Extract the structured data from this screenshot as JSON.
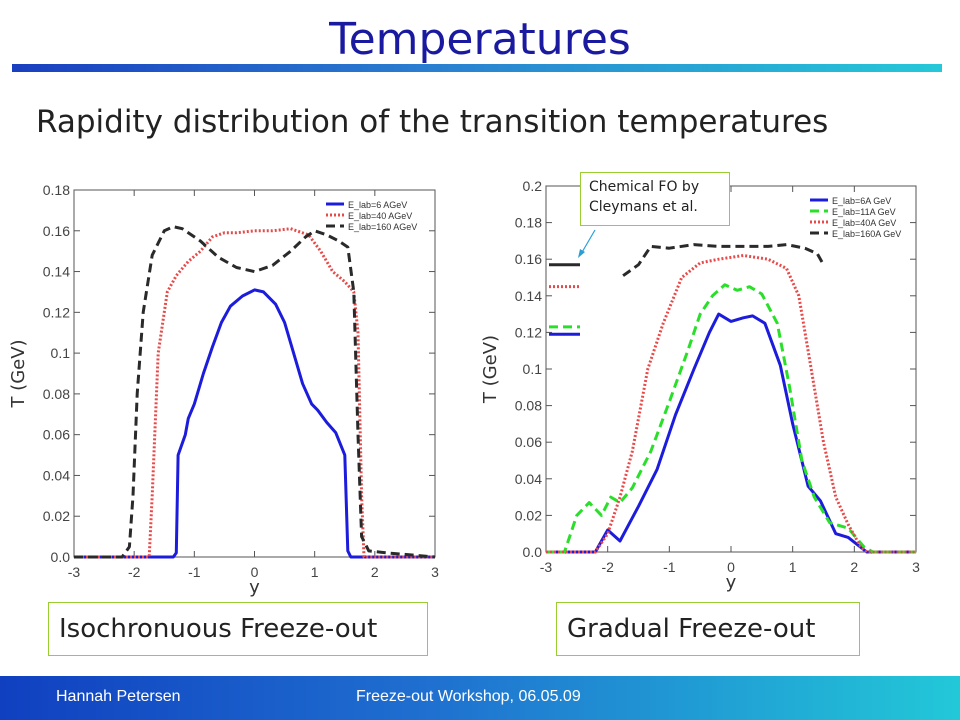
{
  "slide": {
    "title": "Temperatures",
    "subtitle": "Rapidity distribution of the transition temperatures",
    "caption_left": "Isochronuous Freeze-out",
    "caption_right": "Gradual Freeze-out",
    "callout": [
      "Chemical FO by",
      "Cleymans et al."
    ],
    "footer_author": "Hannah Petersen",
    "footer_event": "Freeze-out Workshop, 06.05.09"
  },
  "chart_data": [
    {
      "type": "line",
      "xlabel": "y",
      "ylabel": "T (GeV)",
      "xlim": [
        -3,
        3
      ],
      "ylim": [
        0,
        0.18
      ],
      "xticks": [
        "-3",
        "-2",
        "-1",
        "0",
        "1",
        "2",
        "3"
      ],
      "yticks": [
        "0.0",
        "0.02",
        "0.04",
        "0.06",
        "0.08",
        "0.1",
        "0.12",
        "0.14",
        "0.16",
        "0.18"
      ],
      "legend_position": "top-right",
      "series": [
        {
          "name": "E_lab=6 AGeV",
          "color": "#1c1cdc",
          "style": "solid",
          "points": [
            [
              -3,
              0
            ],
            [
              -1.35,
              0
            ],
            [
              -1.3,
              0.002
            ],
            [
              -1.27,
              0.05
            ],
            [
              -1.15,
              0.06
            ],
            [
              -1.1,
              0.068
            ],
            [
              -1.0,
              0.075
            ],
            [
              -0.85,
              0.09
            ],
            [
              -0.7,
              0.103
            ],
            [
              -0.55,
              0.115
            ],
            [
              -0.4,
              0.123
            ],
            [
              -0.2,
              0.128
            ],
            [
              0,
              0.131
            ],
            [
              0.15,
              0.13
            ],
            [
              0.35,
              0.124
            ],
            [
              0.5,
              0.115
            ],
            [
              0.65,
              0.1
            ],
            [
              0.8,
              0.085
            ],
            [
              0.95,
              0.075
            ],
            [
              1.05,
              0.072
            ],
            [
              1.2,
              0.066
            ],
            [
              1.35,
              0.061
            ],
            [
              1.5,
              0.05
            ],
            [
              1.55,
              0.003
            ],
            [
              1.6,
              0
            ],
            [
              3,
              0
            ]
          ]
        },
        {
          "name": "E_lab=40 AGeV",
          "color": "#e84a4a",
          "style": "dotted",
          "points": [
            [
              -3,
              0
            ],
            [
              -1.75,
              0
            ],
            [
              -1.7,
              0.03
            ],
            [
              -1.6,
              0.1
            ],
            [
              -1.45,
              0.13
            ],
            [
              -1.3,
              0.138
            ],
            [
              -1.1,
              0.145
            ],
            [
              -0.9,
              0.15
            ],
            [
              -0.7,
              0.157
            ],
            [
              -0.5,
              0.159
            ],
            [
              -0.3,
              0.159
            ],
            [
              0,
              0.16
            ],
            [
              0.3,
              0.16
            ],
            [
              0.6,
              0.161
            ],
            [
              0.9,
              0.158
            ],
            [
              1.1,
              0.15
            ],
            [
              1.3,
              0.14
            ],
            [
              1.5,
              0.135
            ],
            [
              1.65,
              0.13
            ],
            [
              1.72,
              0.11
            ],
            [
              1.78,
              0.03
            ],
            [
              1.82,
              0
            ],
            [
              3,
              0
            ]
          ]
        },
        {
          "name": "E_lab=160 AGeV",
          "color": "#2a2a2a",
          "style": "dashed",
          "points": [
            [
              -3,
              0
            ],
            [
              -2.2,
              0
            ],
            [
              -2.08,
              0.005
            ],
            [
              -2.02,
              0.03
            ],
            [
              -1.95,
              0.08
            ],
            [
              -1.85,
              0.12
            ],
            [
              -1.7,
              0.148
            ],
            [
              -1.5,
              0.16
            ],
            [
              -1.35,
              0.162
            ],
            [
              -1.2,
              0.161
            ],
            [
              -0.9,
              0.155
            ],
            [
              -0.6,
              0.147
            ],
            [
              -0.3,
              0.142
            ],
            [
              0,
              0.14
            ],
            [
              0.3,
              0.143
            ],
            [
              0.6,
              0.15
            ],
            [
              0.85,
              0.157
            ],
            [
              1.0,
              0.16
            ],
            [
              1.2,
              0.158
            ],
            [
              1.4,
              0.155
            ],
            [
              1.55,
              0.152
            ],
            [
              1.65,
              0.13
            ],
            [
              1.72,
              0.06
            ],
            [
              1.78,
              0.01
            ],
            [
              1.9,
              0.003
            ],
            [
              2.2,
              0.002
            ],
            [
              3,
              0
            ]
          ]
        }
      ]
    },
    {
      "type": "line",
      "xlabel": "y",
      "ylabel": "T (GeV)",
      "xlim": [
        -3,
        3
      ],
      "ylim": [
        0,
        0.2
      ],
      "xticks": [
        "-3",
        "-2",
        "-1",
        "0",
        "1",
        "2",
        "3"
      ],
      "yticks": [
        "0.0",
        "0.02",
        "0.04",
        "0.06",
        "0.08",
        "0.1",
        "0.12",
        "0.14",
        "0.16",
        "0.18",
        "0.2"
      ],
      "legend_position": "top-right",
      "series": [
        {
          "name": "E_lab=6A GeV",
          "color": "#1c1cdc",
          "style": "solid",
          "points": [
            [
              -3,
              0
            ],
            [
              -2.2,
              0
            ],
            [
              -2.0,
              0.012
            ],
            [
              -1.8,
              0.006
            ],
            [
              -1.5,
              0.025
            ],
            [
              -1.2,
              0.045
            ],
            [
              -0.9,
              0.075
            ],
            [
              -0.6,
              0.1
            ],
            [
              -0.35,
              0.12
            ],
            [
              -0.2,
              0.13
            ],
            [
              0,
              0.126
            ],
            [
              0.2,
              0.128
            ],
            [
              0.35,
              0.129
            ],
            [
              0.55,
              0.125
            ],
            [
              0.8,
              0.102
            ],
            [
              1.0,
              0.07
            ],
            [
              1.25,
              0.036
            ],
            [
              1.45,
              0.028
            ],
            [
              1.7,
              0.01
            ],
            [
              1.9,
              0.008
            ],
            [
              2.2,
              0
            ],
            [
              3,
              0
            ]
          ]
        },
        {
          "name": "E_lab=11A GeV",
          "color": "#2adf2a",
          "style": "dashed",
          "points": [
            [
              -3,
              0
            ],
            [
              -2.7,
              0
            ],
            [
              -2.5,
              0.02
            ],
            [
              -2.3,
              0.027
            ],
            [
              -2.1,
              0.02
            ],
            [
              -1.95,
              0.03
            ],
            [
              -1.8,
              0.027
            ],
            [
              -1.6,
              0.035
            ],
            [
              -1.3,
              0.055
            ],
            [
              -1.0,
              0.082
            ],
            [
              -0.7,
              0.11
            ],
            [
              -0.5,
              0.13
            ],
            [
              -0.3,
              0.14
            ],
            [
              -0.1,
              0.146
            ],
            [
              0.1,
              0.143
            ],
            [
              0.3,
              0.145
            ],
            [
              0.5,
              0.141
            ],
            [
              0.75,
              0.125
            ],
            [
              0.95,
              0.09
            ],
            [
              1.15,
              0.05
            ],
            [
              1.35,
              0.03
            ],
            [
              1.6,
              0.016
            ],
            [
              1.9,
              0.013
            ],
            [
              2.15,
              0.003
            ],
            [
              2.3,
              0
            ],
            [
              3,
              0
            ]
          ]
        },
        {
          "name": "E_lab=40A GeV",
          "color": "#e84a4a",
          "style": "dotted",
          "points": [
            [
              -3,
              0
            ],
            [
              -2.2,
              0
            ],
            [
              -2.0,
              0.01
            ],
            [
              -1.8,
              0.03
            ],
            [
              -1.6,
              0.055
            ],
            [
              -1.35,
              0.1
            ],
            [
              -1.1,
              0.125
            ],
            [
              -0.8,
              0.15
            ],
            [
              -0.5,
              0.158
            ],
            [
              -0.2,
              0.16
            ],
            [
              0.2,
              0.162
            ],
            [
              0.6,
              0.16
            ],
            [
              0.9,
              0.155
            ],
            [
              1.1,
              0.14
            ],
            [
              1.3,
              0.1
            ],
            [
              1.5,
              0.06
            ],
            [
              1.7,
              0.03
            ],
            [
              1.9,
              0.015
            ],
            [
              2.1,
              0.003
            ],
            [
              2.2,
              0
            ],
            [
              3,
              0
            ]
          ]
        },
        {
          "name": "E_lab=160A GeV",
          "color": "#2a2a2a",
          "style": "dashed",
          "points": [
            [
              -1.75,
              0.151
            ],
            [
              -1.5,
              0.157
            ],
            [
              -1.3,
              0.167
            ],
            [
              -1.0,
              0.166
            ],
            [
              -0.6,
              0.168
            ],
            [
              -0.2,
              0.167
            ],
            [
              0.2,
              0.167
            ],
            [
              0.6,
              0.167
            ],
            [
              0.9,
              0.168
            ],
            [
              1.2,
              0.166
            ],
            [
              1.4,
              0.163
            ],
            [
              1.5,
              0.157
            ]
          ]
        }
      ],
      "reference_marks": [
        {
          "series": "E_lab=160A GeV",
          "y": 0.157,
          "color": "#2a2a2a",
          "style": "solid"
        },
        {
          "series": "E_lab=40A GeV",
          "y": 0.145,
          "color": "#e84a4a",
          "style": "dotted"
        },
        {
          "series": "E_lab=11A GeV",
          "y": 0.123,
          "color": "#2adf2a",
          "style": "dashed"
        },
        {
          "series": "E_lab=6A GeV",
          "y": 0.119,
          "color": "#1c1cdc",
          "style": "solid"
        }
      ]
    }
  ]
}
